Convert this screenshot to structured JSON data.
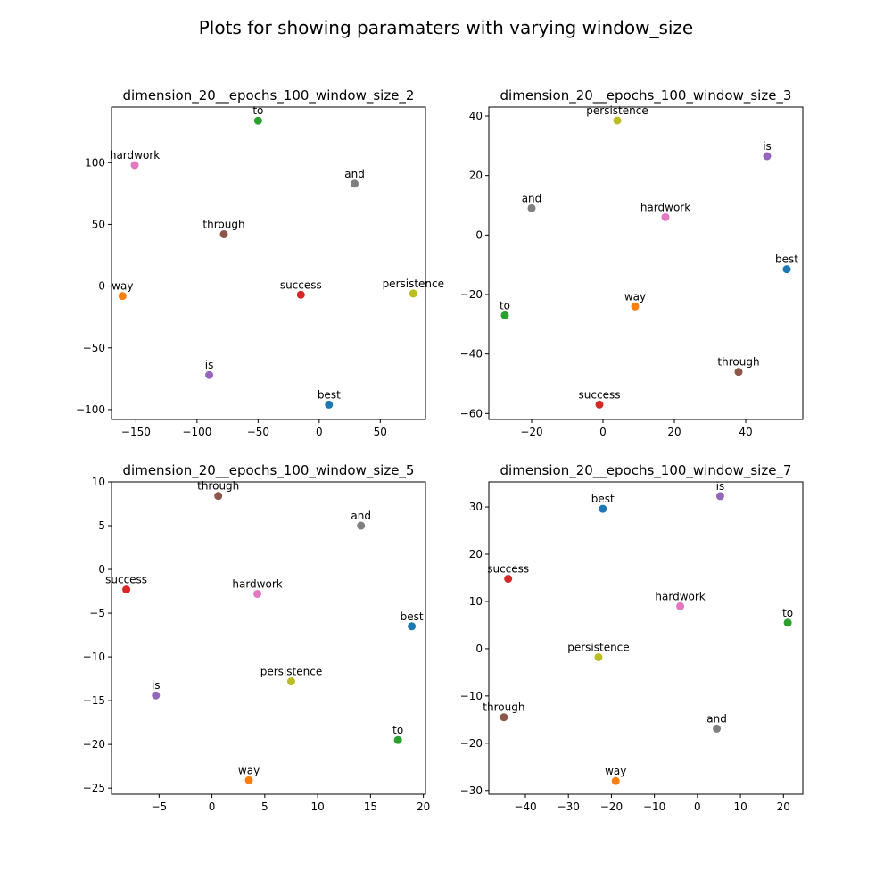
{
  "figure": {
    "suptitle": "Plots for showing paramaters with varying window_size"
  },
  "colors": {
    "best": "#1f77b4",
    "way": "#ff7f0e",
    "to": "#2ca02c",
    "success": "#d62728",
    "is": "#9467bd",
    "through": "#8c564b",
    "hardwork": "#e377c2",
    "and": "#7f7f7f",
    "persistence": "#bcbd22"
  },
  "chart_data": [
    {
      "type": "scatter",
      "title": "dimension_20__epochs_100_window_size_2",
      "xlim": [
        -170,
        87
      ],
      "ylim": [
        -108,
        145
      ],
      "xticks": [
        -150,
        -100,
        -50,
        0,
        50
      ],
      "yticks": [
        -100,
        -50,
        0,
        50,
        100
      ],
      "points": [
        {
          "label": "to",
          "x": -50,
          "y": 134
        },
        {
          "label": "hardwork",
          "x": -151,
          "y": 98
        },
        {
          "label": "and",
          "x": 29,
          "y": 83
        },
        {
          "label": "through",
          "x": -78,
          "y": 42
        },
        {
          "label": "way",
          "x": -161,
          "y": -8
        },
        {
          "label": "success",
          "x": -15,
          "y": -7
        },
        {
          "label": "persistence",
          "x": 77,
          "y": -6
        },
        {
          "label": "is",
          "x": -90,
          "y": -72
        },
        {
          "label": "best",
          "x": 8,
          "y": -96
        }
      ]
    },
    {
      "type": "scatter",
      "title": "dimension_20__epochs_100_window_size_3",
      "xlim": [
        -32,
        56
      ],
      "ylim": [
        -62,
        43
      ],
      "xticks": [
        -20,
        0,
        20,
        40
      ],
      "yticks": [
        -60,
        -40,
        -20,
        0,
        20,
        40
      ],
      "points": [
        {
          "label": "persistence",
          "x": 4,
          "y": 38.5
        },
        {
          "label": "is",
          "x": 46,
          "y": 26.5
        },
        {
          "label": "and",
          "x": -20,
          "y": 9
        },
        {
          "label": "hardwork",
          "x": 17.5,
          "y": 6
        },
        {
          "label": "best",
          "x": 51.5,
          "y": -11.5
        },
        {
          "label": "to",
          "x": -27.5,
          "y": -27
        },
        {
          "label": "way",
          "x": 9,
          "y": -24
        },
        {
          "label": "through",
          "x": 38,
          "y": -46
        },
        {
          "label": "success",
          "x": -1,
          "y": -57
        }
      ]
    },
    {
      "type": "scatter",
      "title": "dimension_20__epochs_100_window_size_5",
      "xlim": [
        -9.5,
        20.2
      ],
      "ylim": [
        -25.7,
        10
      ],
      "xticks": [
        -5,
        0,
        5,
        10,
        15,
        20
      ],
      "yticks": [
        -25,
        -20,
        -15,
        -10,
        -5,
        0,
        5,
        10
      ],
      "points": [
        {
          "label": "through",
          "x": 0.6,
          "y": 8.4
        },
        {
          "label": "and",
          "x": 14.1,
          "y": 5
        },
        {
          "label": "success",
          "x": -8.1,
          "y": -2.3
        },
        {
          "label": "hardwork",
          "x": 4.3,
          "y": -2.8
        },
        {
          "label": "best",
          "x": 18.9,
          "y": -6.5
        },
        {
          "label": "persistence",
          "x": 7.5,
          "y": -12.8
        },
        {
          "label": "is",
          "x": -5.3,
          "y": -14.4
        },
        {
          "label": "to",
          "x": 17.6,
          "y": -19.5
        },
        {
          "label": "way",
          "x": 3.5,
          "y": -24.1
        }
      ]
    },
    {
      "type": "scatter",
      "title": "dimension_20__epochs_100_window_size_7",
      "xlim": [
        -48.5,
        24.5
      ],
      "ylim": [
        -30.8,
        35.3
      ],
      "xticks": [
        -40,
        -30,
        -20,
        -10,
        0,
        10,
        20
      ],
      "yticks": [
        -30,
        -20,
        -10,
        0,
        10,
        20,
        30
      ],
      "points": [
        {
          "label": "is",
          "x": 5.3,
          "y": 32.3
        },
        {
          "label": "best",
          "x": -22,
          "y": 29.6
        },
        {
          "label": "success",
          "x": -44,
          "y": 14.8
        },
        {
          "label": "hardwork",
          "x": -4,
          "y": 9
        },
        {
          "label": "to",
          "x": 21,
          "y": 5.5
        },
        {
          "label": "persistence",
          "x": -23,
          "y": -1.8
        },
        {
          "label": "through",
          "x": -45,
          "y": -14.5
        },
        {
          "label": "and",
          "x": 4.5,
          "y": -16.9
        },
        {
          "label": "way",
          "x": -19,
          "y": -28
        }
      ]
    }
  ]
}
